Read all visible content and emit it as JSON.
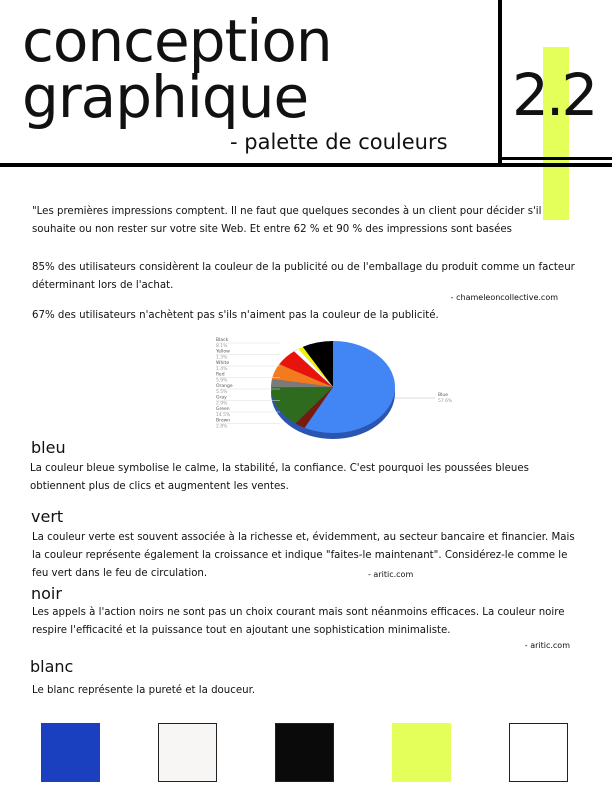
{
  "header": {
    "title_line1": "conception",
    "title_line2": "graphique",
    "subtitle": "- palette de couleurs",
    "section_number": "2.2"
  },
  "intro": {
    "quote": "\"Les premières impressions comptent. Il ne faut que quelques secondes à un client pour décider s'il souhaite ou non rester sur votre site Web. Et entre 62 % et 90 % des impressions sont basées",
    "stat1": "85% des utilisateurs considèrent la couleur de la publicité ou de l'emballage du produit comme un facteur déterminant lors de l'achat.",
    "source1": "- chameleoncollective.com",
    "stat2": "67% des utilisateurs n'achètent pas s'ils n'aiment pas la couleur de la publicité."
  },
  "chart_data": {
    "type": "pie",
    "categories": [
      "Blue",
      "Brown",
      "Green",
      "Gray",
      "Orange",
      "Red",
      "White",
      "Yellow",
      "Black"
    ],
    "values": [
      57.6,
      2.8,
      14.5,
      2.9,
      5.5,
      5.9,
      1.4,
      1.3,
      8.1
    ],
    "value_labels": [
      "57.6%",
      "2.8%",
      "14.5%",
      "2.9%",
      "5.5%",
      "5.9%",
      "1.4%",
      "1.3%",
      "8.1%"
    ],
    "colors": [
      "#4285f4",
      "#7a1a0c",
      "#2f6b1f",
      "#7a7a7a",
      "#f47a1f",
      "#e8140c",
      "#ffffff",
      "#f2f200",
      "#000000"
    ]
  },
  "sections": [
    {
      "heading": "bleu",
      "text": "La couleur bleue symbolise le calme, la stabilité, la confiance. C'est pourquoi les poussées bleues obtiennent plus de clics et augmentent les ventes."
    },
    {
      "heading": "vert",
      "text": "La couleur verte est souvent associée à la richesse et, évidemment, au secteur bancaire et financier. Mais la couleur représente également la croissance et indique \"faites-le maintenant\". Considérez-le comme le feu vert dans le feu de circulation.",
      "source": "- aritic.com"
    },
    {
      "heading": "noir",
      "text": "Les appels à l'action noirs ne sont pas un choix courant mais sont néanmoins efficaces. La couleur noire respire l'efficacité et la puissance tout en ajoutant une sophistication minimaliste.",
      "source": "- aritic.com"
    },
    {
      "heading": "blanc",
      "text": "Le blanc représente la pureté et la douceur."
    }
  ]
}
